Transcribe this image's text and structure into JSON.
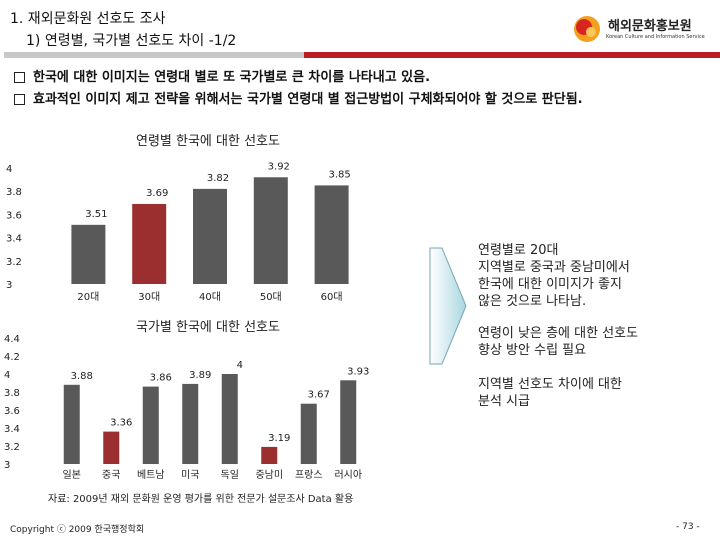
{
  "header": {
    "title_line1": "1. 재외문화원 선호도 조사",
    "title_line2": "1) 연령별, 국가별 선호도 차이 -1/2",
    "logo_text": "해외문화홍보원",
    "logo_subtext": "Korean Culture and Information Service"
  },
  "bullets": [
    "한국에 대한 이미지는 연령대 별로 또 국가별로 큰 차이를 나타내고 있음.",
    "효과적인 이미지 제고 전략을 위해서는 국가별 연령대 별 접근방법이 구체화되어야 할 것으로 판단됨."
  ],
  "chart_data": [
    {
      "type": "bar",
      "title": "연령별 한국에 대한 선호도",
      "categories": [
        "20대",
        "30대",
        "40대",
        "50대",
        "60대"
      ],
      "values": [
        3.51,
        3.69,
        3.82,
        3.92,
        3.85
      ],
      "value_labels": [
        "3.51",
        "3.69",
        "3.82",
        "3.92",
        "3.85"
      ],
      "highlight_index": 1,
      "yticks": [
        "4",
        "3.8",
        "3.6",
        "3.4",
        "3.2",
        "3"
      ],
      "ytick_values": [
        4,
        3.8,
        3.6,
        3.4,
        3.2,
        3
      ],
      "ylim": [
        3,
        4
      ],
      "colors": {
        "bar": "#595959",
        "highlight": "#9b2f2f"
      }
    },
    {
      "type": "bar",
      "title": "국가별 한국에 대한 선호도",
      "categories": [
        "일본",
        "중국",
        "베트남",
        "미국",
        "독일",
        "중남미",
        "프랑스",
        "러시아"
      ],
      "values": [
        3.88,
        3.36,
        3.86,
        3.89,
        4.0,
        3.19,
        3.67,
        3.93
      ],
      "value_labels": [
        "3.88",
        "3.36",
        "3.86",
        "3.89",
        "4",
        "3.19",
        "3.67",
        "3.93"
      ],
      "highlight_indices": [
        1,
        5
      ],
      "yticks": [
        "4.4",
        "4.2",
        "4",
        "3.8",
        "3.6",
        "3.4",
        "3.2",
        "3"
      ],
      "ytick_values": [
        4.4,
        4.2,
        4.0,
        3.8,
        3.6,
        3.4,
        3.2,
        3.0
      ],
      "ylim": [
        3,
        4.4
      ],
      "colors": {
        "bar": "#595959",
        "highlight": "#9b2f2f"
      }
    }
  ],
  "notes": [
    "연령별로 20대\n지역별로 중국과 중남미에서\n한국에 대한 이미지가 좋지\n않은 것으로 나타남.",
    "연령이 낮은 층에 대한 선호도\n향상 방안 수립 필요",
    "지역별 선호도 차이에 대한\n분석 시급"
  ],
  "footer": {
    "source": "자료: 2009년 재외 문화원 운영 평가를 위한 전문가 설문조사 Data 활용",
    "copyright": "Copyright ⓒ 2009 한국행정학회",
    "page_number": "- 73 -"
  }
}
